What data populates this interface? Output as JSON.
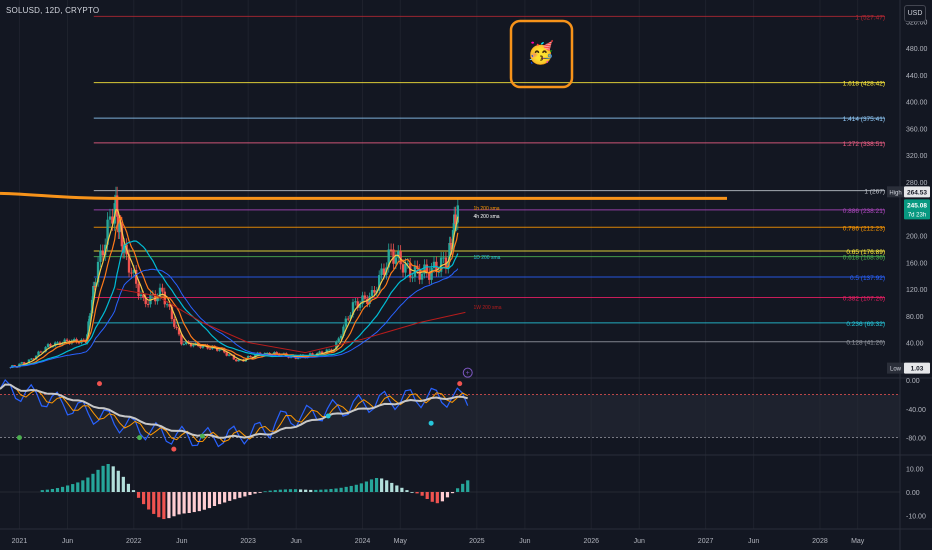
{
  "header": {
    "symbol_line": "SOLUSD, 12D, CRYPTO",
    "currency_button": "USD"
  },
  "emoji": "🥳",
  "chart_data": {
    "type": "line",
    "title": "SOLUSD, 12D, CRYPTO",
    "price_axis": {
      "ticks": [
        "520.00",
        "480.00",
        "440.00",
        "400.00",
        "360.00",
        "320.00",
        "280.00",
        "240.00",
        "200.00",
        "160.00",
        "120.00",
        "80.00",
        "40.00"
      ],
      "ylim": [
        0,
        520
      ]
    },
    "x_ticks": [
      "2021",
      "Jun",
      "2022",
      "Jun",
      "2023",
      "Jun",
      "2024",
      "May",
      "2025",
      "Jun",
      "2026",
      "Jun",
      "2027",
      "Jun",
      "2028",
      "May"
    ],
    "fib_levels": [
      {
        "label": "1 (527.47)",
        "value": 527.47,
        "color": "#b22833"
      },
      {
        "label": "1.618 (428.42)",
        "value": 428.42,
        "color": "#ffeb3b"
      },
      {
        "label": "1.414 (375.41)",
        "value": 375.41,
        "color": "#90caf9"
      },
      {
        "label": "1.272 (338.51)",
        "value": 338.51,
        "color": "#ef5f85"
      },
      {
        "label": "1 (267)",
        "value": 267,
        "color": "#c0c4cc"
      },
      {
        "label": "0.886 (238.21)",
        "value": 238.21,
        "color": "#ab47bc"
      },
      {
        "label": "0.786 (212.23)",
        "value": 212.23,
        "color": "#ff9800"
      },
      {
        "label": "0.65 (176.89)",
        "value": 176.89,
        "color": "#ffeb3b"
      },
      {
        "label": "0.618 (168.36)",
        "value": 168.36,
        "color": "#4caf50"
      },
      {
        "label": "0.5 (137.92)",
        "value": 137.92,
        "color": "#2962ff"
      },
      {
        "label": "0.382 (107.26)",
        "value": 107.26,
        "color": "#e91e63"
      },
      {
        "label": "0.236 (69.32)",
        "value": 69.32,
        "color": "#26c6da"
      },
      {
        "label": "0.128 (41.26)",
        "value": 41.26,
        "color": "#9598a1"
      }
    ],
    "price_badges": [
      {
        "label": "High",
        "value": "264.53",
        "bg": "#e6e7ea",
        "fg": "#131722",
        "y": 264.53
      },
      {
        "label": "",
        "value": "245.08",
        "sub": "7d 23h",
        "bg": "#089981",
        "fg": "#ffffff",
        "y": 245.08
      },
      {
        "label": "Low",
        "value": "1.03",
        "bg": "#e6e7ea",
        "fg": "#131722",
        "y": 1.03
      }
    ],
    "resistance": {
      "value": 260,
      "color": "#f7931a"
    },
    "ma_labels": [
      "1h 200 sma",
      "4h 200 sma",
      "1D 200 sma",
      "1W 200 sma"
    ],
    "series_price": {
      "x": [
        "2020-12",
        "2021-02",
        "2021-04",
        "2021-06",
        "2021-08",
        "2021-09",
        "2021-11",
        "2021-12",
        "2022-02",
        "2022-04",
        "2022-06",
        "2022-08",
        "2022-10",
        "2022-12",
        "2023-02",
        "2023-04",
        "2023-06",
        "2023-08",
        "2023-10",
        "2023-12",
        "2024-02",
        "2024-04",
        "2024-06",
        "2024-08",
        "2024-10",
        "2024-11"
      ],
      "close": [
        2,
        12,
        35,
        42,
        42,
        140,
        250,
        175,
        100,
        115,
        40,
        35,
        30,
        12,
        22,
        23,
        18,
        22,
        30,
        95,
        110,
        175,
        145,
        145,
        165,
        245
      ]
    },
    "oscillator_axis": [
      "0.00",
      "-40.00",
      "-80.00"
    ],
    "histogram_axis": [
      "10.00",
      "0.00",
      "-10.00"
    ],
    "histogram": [
      0.8,
      1.0,
      1.3,
      1.7,
      2.2,
      2.8,
      3.4,
      4.1,
      5.0,
      6.2,
      7.8,
      9.5,
      11.2,
      12.0,
      11.0,
      9.1,
      6.5,
      3.5,
      0.8,
      -2.5,
      -5.2,
      -7.5,
      -9.4,
      -10.8,
      -11.6,
      -11.2,
      -10.4,
      -9.6,
      -9.2,
      -9.0,
      -8.6,
      -8.2,
      -7.6,
      -6.9,
      -6.0,
      -5.2,
      -4.5,
      -3.8,
      -3.1,
      -2.5,
      -1.9,
      -1.3,
      -0.7,
      -0.2,
      0.3,
      0.6,
      0.8,
      1.0,
      1.1,
      1.2,
      1.2,
      1.1,
      1.0,
      0.9,
      0.9,
      1.0,
      1.1,
      1.3,
      1.5,
      1.8,
      2.2,
      2.6,
      3.1,
      3.7,
      4.5,
      5.4,
      6.0,
      5.8,
      5.0,
      3.9,
      2.8,
      1.8,
      0.8,
      0.0,
      -0.6,
      -1.6,
      -3.0,
      -4.2,
      -4.8,
      -4.0,
      -2.3,
      -0.5,
      1.6,
      3.5,
      5.0
    ]
  }
}
